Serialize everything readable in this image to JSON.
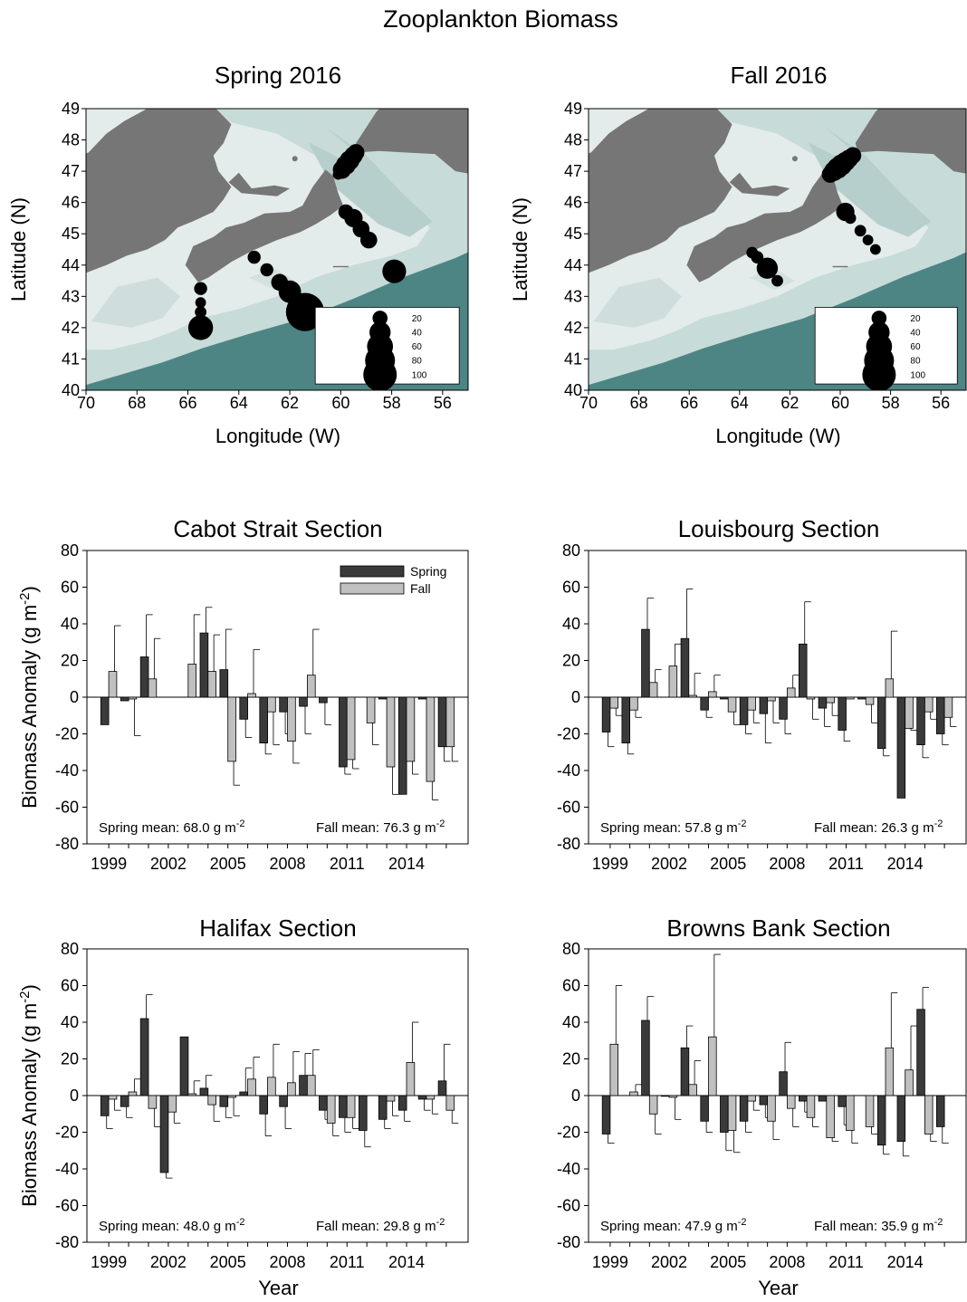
{
  "figure_title": "Zooplankton Biomass",
  "maps": [
    {
      "title": "Spring 2016",
      "xlabel": "Longitude (W)",
      "ylabel": "Latitude (N)",
      "xlim": [
        70,
        55
      ],
      "ylim": [
        40,
        49
      ],
      "xticks": [
        70,
        68,
        66,
        64,
        62,
        60,
        58,
        56
      ],
      "yticks": [
        40,
        41,
        42,
        43,
        44,
        45,
        46,
        47,
        48,
        49
      ],
      "legend_values": [
        20,
        40,
        60,
        80,
        100
      ],
      "stations": [
        {
          "lon": 60.1,
          "lat": 46.9,
          "value": 10
        },
        {
          "lon": 59.95,
          "lat": 47.05,
          "value": 30
        },
        {
          "lon": 59.8,
          "lat": 47.2,
          "value": 35
        },
        {
          "lon": 59.65,
          "lat": 47.35,
          "value": 35
        },
        {
          "lon": 59.5,
          "lat": 47.5,
          "value": 30
        },
        {
          "lon": 59.4,
          "lat": 47.6,
          "value": 25
        },
        {
          "lon": 59.8,
          "lat": 45.7,
          "value": 20
        },
        {
          "lon": 59.5,
          "lat": 45.5,
          "value": 30
        },
        {
          "lon": 59.2,
          "lat": 45.15,
          "value": 25
        },
        {
          "lon": 58.9,
          "lat": 44.8,
          "value": 25
        },
        {
          "lon": 57.9,
          "lat": 43.8,
          "value": 50
        },
        {
          "lon": 63.4,
          "lat": 44.25,
          "value": 15
        },
        {
          "lon": 62.9,
          "lat": 43.85,
          "value": 15
        },
        {
          "lon": 62.4,
          "lat": 43.45,
          "value": 25
        },
        {
          "lon": 62.0,
          "lat": 43.15,
          "value": 45
        },
        {
          "lon": 61.4,
          "lat": 42.5,
          "value": 130
        },
        {
          "lon": 65.5,
          "lat": 43.25,
          "value": 15
        },
        {
          "lon": 65.5,
          "lat": 42.8,
          "value": 10
        },
        {
          "lon": 65.5,
          "lat": 42.5,
          "value": 12
        },
        {
          "lon": 65.5,
          "lat": 42.0,
          "value": 55
        }
      ]
    },
    {
      "title": "Fall 2016",
      "xlabel": "Longitude (W)",
      "ylabel": "Latitude (N)",
      "xlim": [
        70,
        55
      ],
      "ylim": [
        40,
        49
      ],
      "xticks": [
        70,
        68,
        66,
        64,
        62,
        60,
        58,
        56
      ],
      "yticks": [
        40,
        41,
        42,
        43,
        44,
        45,
        46,
        47,
        48,
        49
      ],
      "legend_values": [
        20,
        40,
        60,
        80,
        100
      ],
      "stations": [
        {
          "lon": 60.4,
          "lat": 46.9,
          "value": 25
        },
        {
          "lon": 60.25,
          "lat": 47.0,
          "value": 35
        },
        {
          "lon": 60.1,
          "lat": 47.1,
          "value": 40
        },
        {
          "lon": 59.95,
          "lat": 47.2,
          "value": 40
        },
        {
          "lon": 59.8,
          "lat": 47.3,
          "value": 35
        },
        {
          "lon": 59.65,
          "lat": 47.4,
          "value": 30
        },
        {
          "lon": 59.5,
          "lat": 47.5,
          "value": 25
        },
        {
          "lon": 59.8,
          "lat": 45.7,
          "value": 30
        },
        {
          "lon": 59.6,
          "lat": 45.5,
          "value": 12
        },
        {
          "lon": 59.2,
          "lat": 45.1,
          "value": 12
        },
        {
          "lon": 58.9,
          "lat": 44.8,
          "value": 10
        },
        {
          "lon": 58.6,
          "lat": 44.5,
          "value": 10
        },
        {
          "lon": 63.5,
          "lat": 44.4,
          "value": 12
        },
        {
          "lon": 63.3,
          "lat": 44.25,
          "value": 14
        },
        {
          "lon": 62.9,
          "lat": 43.9,
          "value": 40
        },
        {
          "lon": 62.5,
          "lat": 43.5,
          "value": 12
        }
      ]
    }
  ],
  "chart_data": [
    {
      "type": "bar",
      "title": "Cabot Strait Section",
      "xlabel": "",
      "ylabel": "Biomass Anomaly (g m-2)",
      "ylim": [
        -80,
        80
      ],
      "yticks": [
        -80,
        -60,
        -40,
        -20,
        0,
        20,
        40,
        60,
        80
      ],
      "years": [
        1999,
        2000,
        2001,
        2002,
        2003,
        2004,
        2005,
        2006,
        2007,
        2008,
        2009,
        2010,
        2011,
        2012,
        2013,
        2014,
        2015,
        2016
      ],
      "xtick_labels": [
        "1999",
        "2002",
        "2005",
        "2008",
        "2011",
        "2014"
      ],
      "legend": {
        "show": true,
        "placement": "top-right",
        "entries": [
          "Spring",
          "Fall"
        ]
      },
      "series": [
        {
          "name": "Spring",
          "color": "#3a3a3a",
          "values": [
            -15,
            -2,
            22,
            null,
            null,
            35,
            15,
            -12,
            -25,
            -8,
            -5,
            -3,
            -38,
            null,
            -1,
            -53,
            -1,
            -27
          ],
          "errors": [
            0,
            0,
            23,
            null,
            null,
            14,
            22,
            10,
            6,
            12,
            15,
            12,
            4,
            null,
            0,
            0,
            0,
            8
          ]
        },
        {
          "name": "Fall",
          "color": "#c0c0c0",
          "values": [
            14,
            -1,
            10,
            null,
            18,
            14,
            -35,
            2,
            -8,
            -24,
            12,
            null,
            -34,
            -14,
            -38,
            -35,
            -46,
            -27
          ],
          "errors": [
            25,
            20,
            22,
            null,
            27,
            20,
            13,
            24,
            18,
            12,
            25,
            null,
            5,
            12,
            15,
            7,
            10,
            8
          ]
        }
      ],
      "annotations": {
        "spring_mean": "Spring mean: 68.0 g m",
        "fall_mean": "Fall mean: 76.3 g m",
        "unit_sup": "-2"
      }
    },
    {
      "type": "bar",
      "title": "Louisbourg Section",
      "xlabel": "",
      "ylabel": "",
      "ylim": [
        -80,
        80
      ],
      "yticks": [
        -80,
        -60,
        -40,
        -20,
        0,
        20,
        40,
        60,
        80
      ],
      "years": [
        1999,
        2000,
        2001,
        2002,
        2003,
        2004,
        2005,
        2006,
        2007,
        2008,
        2009,
        2010,
        2011,
        2012,
        2013,
        2014,
        2015,
        2016
      ],
      "xtick_labels": [
        "1999",
        "2002",
        "2005",
        "2008",
        "2011",
        "2014"
      ],
      "legend": {
        "show": false
      },
      "series": [
        {
          "name": "Spring",
          "color": "#3a3a3a",
          "values": [
            -19,
            -25,
            37,
            null,
            32,
            -7,
            -1,
            -15,
            -9,
            -12,
            29,
            -6,
            -18,
            -1,
            -28,
            -55,
            -26,
            -20
          ],
          "errors": [
            8,
            6,
            17,
            null,
            27,
            4,
            0,
            5,
            16,
            8,
            23,
            10,
            6,
            0,
            4,
            0,
            7,
            6
          ]
        },
        {
          "name": "Fall",
          "color": "#c0c0c0",
          "values": [
            -6,
            -7,
            8,
            17,
            1,
            3,
            -8,
            -7,
            -2,
            5,
            -1,
            -3,
            -1,
            -4,
            10,
            -17,
            -8,
            -11
          ],
          "errors": [
            4,
            4,
            7,
            12,
            12,
            9,
            7,
            7,
            12,
            7,
            11,
            7,
            0,
            10,
            26,
            1,
            4,
            5
          ]
        }
      ],
      "annotations": {
        "spring_mean": "Spring mean: 57.8 g m",
        "fall_mean": "Fall mean: 26.3 g m",
        "unit_sup": "-2"
      }
    },
    {
      "type": "bar",
      "title": "Halifax Section",
      "xlabel": "Year",
      "ylabel": "Biomass Anomaly (g m-2)",
      "ylim": [
        -80,
        80
      ],
      "yticks": [
        -80,
        -60,
        -40,
        -20,
        0,
        20,
        40,
        60,
        80
      ],
      "years": [
        1999,
        2000,
        2001,
        2002,
        2003,
        2004,
        2005,
        2006,
        2007,
        2008,
        2009,
        2010,
        2011,
        2012,
        2013,
        2014,
        2015,
        2016
      ],
      "xtick_labels": [
        "1999",
        "2002",
        "2005",
        "2008",
        "2011",
        "2014"
      ],
      "legend": {
        "show": false
      },
      "series": [
        {
          "name": "Spring",
          "color": "#3a3a3a",
          "values": [
            -11,
            -6,
            42,
            -42,
            32,
            4,
            -6,
            2,
            -10,
            -6,
            11,
            -8,
            -12,
            -19,
            -13,
            -8,
            -2,
            8
          ],
          "errors": [
            7,
            6,
            13,
            3,
            0,
            7,
            6,
            13,
            12,
            12,
            12,
            5,
            8,
            9,
            5,
            6,
            6,
            20
          ]
        },
        {
          "name": "Fall",
          "color": "#c0c0c0",
          "values": [
            -2,
            2,
            -7,
            -9,
            1,
            -5,
            -1,
            9,
            10,
            7,
            11,
            -15,
            -12,
            null,
            -3,
            18,
            -2,
            -8
          ],
          "errors": [
            6,
            7,
            10,
            6,
            7,
            9,
            10,
            12,
            18,
            17,
            14,
            7,
            6,
            null,
            8,
            22,
            8,
            7
          ]
        }
      ],
      "annotations": {
        "spring_mean": "Spring mean: 48.0 g m",
        "fall_mean": "Fall mean: 29.8 g m",
        "unit_sup": "-2"
      }
    },
    {
      "type": "bar",
      "title": "Browns Bank Section",
      "xlabel": "Year",
      "ylabel": "",
      "ylim": [
        -80,
        80
      ],
      "yticks": [
        -80,
        -60,
        -40,
        -20,
        0,
        20,
        40,
        60,
        80
      ],
      "years": [
        1999,
        2000,
        2001,
        2002,
        2003,
        2004,
        2005,
        2006,
        2007,
        2008,
        2009,
        2010,
        2011,
        2012,
        2013,
        2014,
        2015,
        2016
      ],
      "xtick_labels": [
        "1999",
        "2002",
        "2005",
        "2008",
        "2011",
        "2014"
      ],
      "legend": {
        "show": false
      },
      "series": [
        {
          "name": "Spring",
          "color": "#3a3a3a",
          "values": [
            -21,
            null,
            41,
            0,
            26,
            -14,
            -20,
            -14,
            -5,
            13,
            -3,
            -3,
            -6,
            null,
            -27,
            -25,
            47,
            -17
          ],
          "errors": [
            5,
            null,
            13,
            0,
            12,
            6,
            10,
            6,
            7,
            16,
            6,
            0,
            10,
            null,
            5,
            8,
            12,
            9
          ]
        },
        {
          "name": "Fall",
          "color": "#c0c0c0",
          "values": [
            28,
            2,
            -10,
            -1,
            6,
            32,
            -19,
            -3,
            -14,
            -7,
            -12,
            -23,
            -19,
            -17,
            26,
            14,
            -21,
            null
          ],
          "errors": [
            32,
            4,
            11,
            12,
            13,
            45,
            12,
            5,
            10,
            10,
            5,
            2,
            7,
            4,
            30,
            24,
            4,
            null
          ]
        }
      ],
      "annotations": {
        "spring_mean": "Spring mean: 47.9 g m",
        "fall_mean": "Fall mean: 35.9 g m",
        "unit_sup": "-2"
      }
    }
  ]
}
